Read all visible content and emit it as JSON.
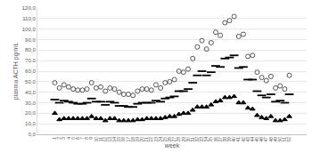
{
  "chart_data": {
    "type": "scatter",
    "x_label": "week",
    "y_label": "plasma ACTH pg/mL",
    "categories": [
      "1",
      "2",
      "3",
      "4",
      "5",
      "6",
      "7",
      "8",
      "9",
      "10",
      "11",
      "12",
      "13",
      "14",
      "15",
      "16",
      "17",
      "18",
      "19",
      "20",
      "21",
      "22",
      "23",
      "24",
      "25",
      "26",
      "27",
      "28",
      "29",
      "30",
      "31",
      "32",
      "33",
      "34",
      "35",
      "36",
      "37",
      "38",
      "39",
      "40",
      "41",
      "42",
      "43",
      "44",
      "45",
      "46",
      "47",
      "48",
      "49",
      "50",
      "51",
      "52"
    ],
    "series": [
      {
        "marker": "circle-open",
        "color": "#555555",
        "values": [
          49,
          44,
          47,
          45,
          43,
          42,
          42,
          43,
          49,
          44,
          45,
          41,
          44,
          43,
          40,
          38,
          38,
          37,
          41,
          43,
          43,
          42,
          47,
          44,
          49,
          50,
          52,
          60,
          59,
          62,
          72,
          83,
          89,
          81,
          87,
          97,
          94,
          106,
          108,
          112,
          93,
          95,
          74,
          75,
          59,
          54,
          51,
          55,
          44,
          46,
          43,
          56
        ]
      },
      {
        "marker": "dash",
        "color": "#000000",
        "values": [
          33,
          30,
          32,
          31,
          30,
          29,
          29,
          30,
          34,
          31,
          31,
          28,
          31,
          30,
          27,
          27,
          26,
          26,
          29,
          30,
          30,
          30,
          32,
          31,
          34,
          35,
          36,
          41,
          41,
          43,
          49,
          56,
          60,
          56,
          59,
          65,
          64,
          72,
          73,
          75,
          63,
          64,
          52,
          52,
          41,
          37,
          35,
          38,
          31,
          32,
          30,
          38
        ]
      },
      {
        "marker": "triangle",
        "color": "#000000",
        "values": [
          20,
          14,
          15,
          15,
          15,
          15,
          15,
          15,
          17,
          15,
          15,
          13,
          15,
          15,
          13,
          13,
          13,
          13,
          14,
          14,
          15,
          15,
          15,
          15,
          16,
          17,
          17,
          19,
          20,
          20,
          23,
          26,
          26,
          26,
          28,
          31,
          32,
          35,
          35,
          36,
          30,
          30,
          25,
          24,
          18,
          16,
          15,
          17,
          13,
          13,
          14,
          17
        ]
      }
    ],
    "ylim": [
      0,
      120
    ],
    "yticks": [
      {
        "value": 0,
        "label": "0,0"
      },
      {
        "value": 10,
        "label": "10,0"
      },
      {
        "value": 20,
        "label": "20,0"
      },
      {
        "value": 30,
        "label": "30,0"
      },
      {
        "value": 40,
        "label": "40,0"
      },
      {
        "value": 50,
        "label": "50,0"
      },
      {
        "value": 60,
        "label": "60,0"
      },
      {
        "value": 70,
        "label": "70,0"
      },
      {
        "value": 80,
        "label": "80,0"
      },
      {
        "value": 90,
        "label": "90,0"
      },
      {
        "value": 100,
        "label": "100,0"
      },
      {
        "value": 110,
        "label": "110,0"
      },
      {
        "value": 120,
        "label": "120,0"
      }
    ],
    "grid": true
  }
}
